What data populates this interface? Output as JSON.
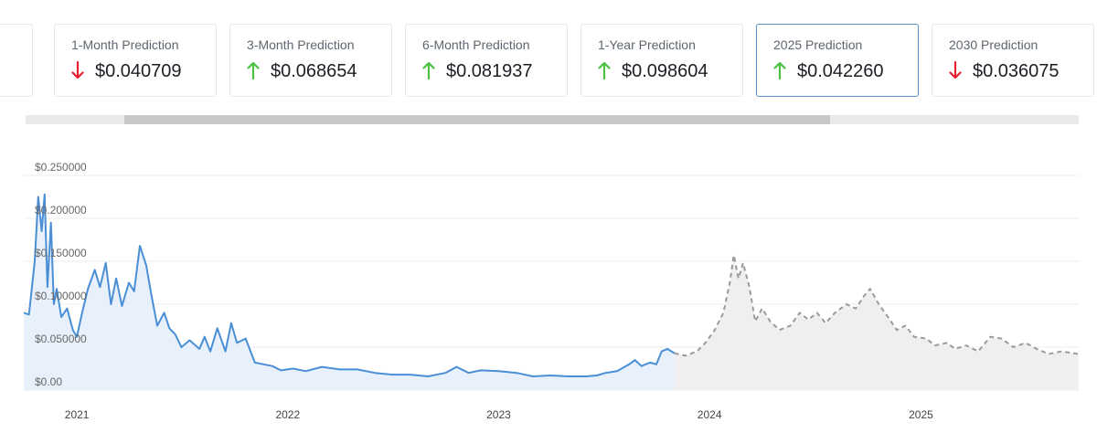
{
  "cards": [
    {
      "label": "",
      "value": "",
      "direction": "none"
    },
    {
      "label": "1-Month Prediction",
      "value": "$0.040709",
      "direction": "down"
    },
    {
      "label": "3-Month Prediction",
      "value": "$0.068654",
      "direction": "up"
    },
    {
      "label": "6-Month Prediction",
      "value": "$0.081937",
      "direction": "up"
    },
    {
      "label": "1-Year Prediction",
      "value": "$0.098604",
      "direction": "up"
    },
    {
      "label": "2025 Prediction",
      "value": "$0.042260",
      "direction": "up"
    },
    {
      "label": "2030 Prediction",
      "value": "$0.036075",
      "direction": "down"
    }
  ],
  "colors": {
    "up": "#4cc03f",
    "down": "#e8202f",
    "historical_line": "#4a8fd6",
    "historical_fill": "#e8f1fb",
    "prediction_line": "#9a9a9a",
    "prediction_fill": "#efefef",
    "active_card_border": "#5b8fc7",
    "grid": "#ececec",
    "axis_text": "#666666"
  },
  "chart_data": {
    "type": "area",
    "title": "",
    "xlabel": "",
    "ylabel": "",
    "ylim": [
      0,
      0.25
    ],
    "xlim": [
      "2020-10-01",
      "2025-10-01"
    ],
    "y_ticks": [
      "$0.00",
      "$0.050000",
      "$0.100000",
      "$0.150000",
      "$0.200000",
      "$0.250000"
    ],
    "y_tick_values": [
      0,
      0.05,
      0.1,
      0.15,
      0.2,
      0.25
    ],
    "x_ticks": [
      "2021",
      "2022",
      "2023",
      "2024",
      "2025"
    ],
    "x_tick_dates": [
      "2021-01-01",
      "2022-01-01",
      "2023-01-01",
      "2024-01-01",
      "2025-01-01"
    ],
    "grid": true,
    "legend": "none",
    "series": [
      {
        "style": "solid",
        "points": [
          [
            "2020-10-01",
            0.09
          ],
          [
            "2020-10-10",
            0.088
          ],
          [
            "2020-10-20",
            0.15
          ],
          [
            "2020-10-26",
            0.225
          ],
          [
            "2020-11-01",
            0.185
          ],
          [
            "2020-11-06",
            0.228
          ],
          [
            "2020-11-11",
            0.12
          ],
          [
            "2020-11-17",
            0.195
          ],
          [
            "2020-11-22",
            0.1
          ],
          [
            "2020-11-27",
            0.118
          ],
          [
            "2020-12-05",
            0.085
          ],
          [
            "2020-12-15",
            0.095
          ],
          [
            "2020-12-25",
            0.07
          ],
          [
            "2021-01-01",
            0.062
          ],
          [
            "2021-01-10",
            0.09
          ],
          [
            "2021-01-20",
            0.118
          ],
          [
            "2021-02-01",
            0.14
          ],
          [
            "2021-02-10",
            0.12
          ],
          [
            "2021-02-20",
            0.148
          ],
          [
            "2021-03-01",
            0.1
          ],
          [
            "2021-03-10",
            0.13
          ],
          [
            "2021-03-20",
            0.098
          ],
          [
            "2021-04-01",
            0.125
          ],
          [
            "2021-04-10",
            0.115
          ],
          [
            "2021-04-20",
            0.168
          ],
          [
            "2021-05-01",
            0.145
          ],
          [
            "2021-05-10",
            0.11
          ],
          [
            "2021-05-20",
            0.075
          ],
          [
            "2021-06-01",
            0.09
          ],
          [
            "2021-06-10",
            0.072
          ],
          [
            "2021-06-20",
            0.065
          ],
          [
            "2021-07-01",
            0.05
          ],
          [
            "2021-07-15",
            0.058
          ],
          [
            "2021-08-01",
            0.048
          ],
          [
            "2021-08-10",
            0.062
          ],
          [
            "2021-08-20",
            0.045
          ],
          [
            "2021-09-01",
            0.072
          ],
          [
            "2021-09-15",
            0.045
          ],
          [
            "2021-09-25",
            0.078
          ],
          [
            "2021-10-05",
            0.055
          ],
          [
            "2021-10-20",
            0.06
          ],
          [
            "2021-11-05",
            0.032
          ],
          [
            "2021-11-20",
            0.03
          ],
          [
            "2021-12-05",
            0.028
          ],
          [
            "2021-12-20",
            0.023
          ],
          [
            "2022-01-10",
            0.025
          ],
          [
            "2022-02-01",
            0.022
          ],
          [
            "2022-03-01",
            0.027
          ],
          [
            "2022-04-01",
            0.024
          ],
          [
            "2022-05-01",
            0.024
          ],
          [
            "2022-06-01",
            0.02
          ],
          [
            "2022-07-01",
            0.018
          ],
          [
            "2022-08-01",
            0.018
          ],
          [
            "2022-09-01",
            0.016
          ],
          [
            "2022-10-01",
            0.02
          ],
          [
            "2022-10-20",
            0.027
          ],
          [
            "2022-11-10",
            0.02
          ],
          [
            "2022-12-01",
            0.023
          ],
          [
            "2023-01-01",
            0.022
          ],
          [
            "2023-02-01",
            0.02
          ],
          [
            "2023-03-01",
            0.016
          ],
          [
            "2023-04-01",
            0.017
          ],
          [
            "2023-05-01",
            0.016
          ],
          [
            "2023-06-01",
            0.016
          ],
          [
            "2023-06-20",
            0.017
          ],
          [
            "2023-07-05",
            0.02
          ],
          [
            "2023-07-25",
            0.022
          ],
          [
            "2023-08-15",
            0.03
          ],
          [
            "2023-08-25",
            0.035
          ],
          [
            "2023-09-05",
            0.028
          ],
          [
            "2023-09-20",
            0.032
          ],
          [
            "2023-10-01",
            0.03
          ],
          [
            "2023-10-10",
            0.045
          ],
          [
            "2023-10-20",
            0.048
          ],
          [
            "2023-11-01",
            0.043
          ]
        ]
      },
      {
        "style": "dashed",
        "points": [
          [
            "2023-11-01",
            0.043
          ],
          [
            "2023-11-20",
            0.04
          ],
          [
            "2023-12-10",
            0.045
          ],
          [
            "2023-12-25",
            0.055
          ],
          [
            "2024-01-10",
            0.07
          ],
          [
            "2024-01-25",
            0.09
          ],
          [
            "2024-02-05",
            0.125
          ],
          [
            "2024-02-12",
            0.157
          ],
          [
            "2024-02-20",
            0.13
          ],
          [
            "2024-02-28",
            0.148
          ],
          [
            "2024-03-10",
            0.12
          ],
          [
            "2024-03-20",
            0.08
          ],
          [
            "2024-04-01",
            0.095
          ],
          [
            "2024-04-15",
            0.08
          ],
          [
            "2024-05-01",
            0.07
          ],
          [
            "2024-05-20",
            0.075
          ],
          [
            "2024-06-05",
            0.09
          ],
          [
            "2024-06-20",
            0.082
          ],
          [
            "2024-07-05",
            0.09
          ],
          [
            "2024-07-20",
            0.078
          ],
          [
            "2024-08-05",
            0.09
          ],
          [
            "2024-08-25",
            0.1
          ],
          [
            "2024-09-10",
            0.095
          ],
          [
            "2024-09-25",
            0.11
          ],
          [
            "2024-10-05",
            0.118
          ],
          [
            "2024-10-20",
            0.1
          ],
          [
            "2024-11-05",
            0.085
          ],
          [
            "2024-11-20",
            0.07
          ],
          [
            "2024-12-05",
            0.075
          ],
          [
            "2024-12-20",
            0.062
          ],
          [
            "2025-01-10",
            0.06
          ],
          [
            "2025-01-25",
            0.052
          ],
          [
            "2025-02-15",
            0.055
          ],
          [
            "2025-03-01",
            0.048
          ],
          [
            "2025-03-20",
            0.052
          ],
          [
            "2025-04-10",
            0.045
          ],
          [
            "2025-05-01",
            0.062
          ],
          [
            "2025-05-20",
            0.06
          ],
          [
            "2025-06-10",
            0.05
          ],
          [
            "2025-07-01",
            0.055
          ],
          [
            "2025-07-20",
            0.048
          ],
          [
            "2025-08-10",
            0.042
          ],
          [
            "2025-09-01",
            0.045
          ],
          [
            "2025-10-01",
            0.042
          ]
        ]
      }
    ]
  }
}
